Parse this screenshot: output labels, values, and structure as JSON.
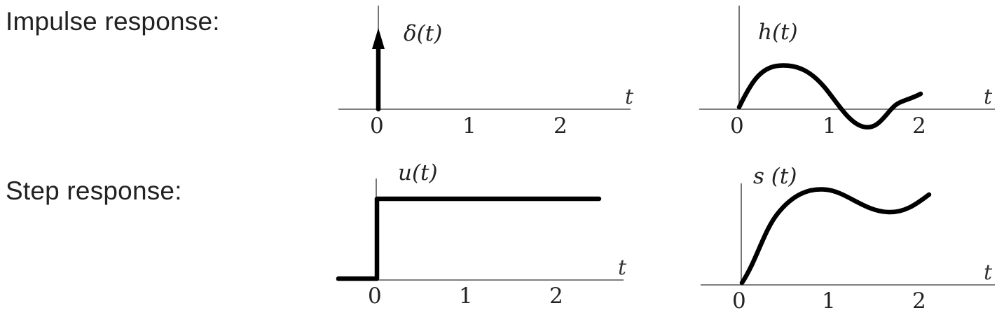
{
  "labels": {
    "impulse": "Impulse response:",
    "step": "Step response:"
  },
  "plots": {
    "delta": {
      "name": "δ(t)",
      "axis_var": "t",
      "ticks": [
        "0",
        "1",
        "2"
      ]
    },
    "h": {
      "name": "h(t)",
      "axis_var": "t",
      "ticks": [
        "0",
        "1",
        "2"
      ]
    },
    "u": {
      "name": "u(t)",
      "axis_var": "t",
      "ticks": [
        "0",
        "1",
        "2"
      ]
    },
    "s": {
      "name": "s (t)",
      "axis_var": "t",
      "ticks": [
        "0",
        "1",
        "2"
      ]
    }
  },
  "colors": {
    "curve": "#000000",
    "axis": "#555555",
    "text": "#222222"
  }
}
